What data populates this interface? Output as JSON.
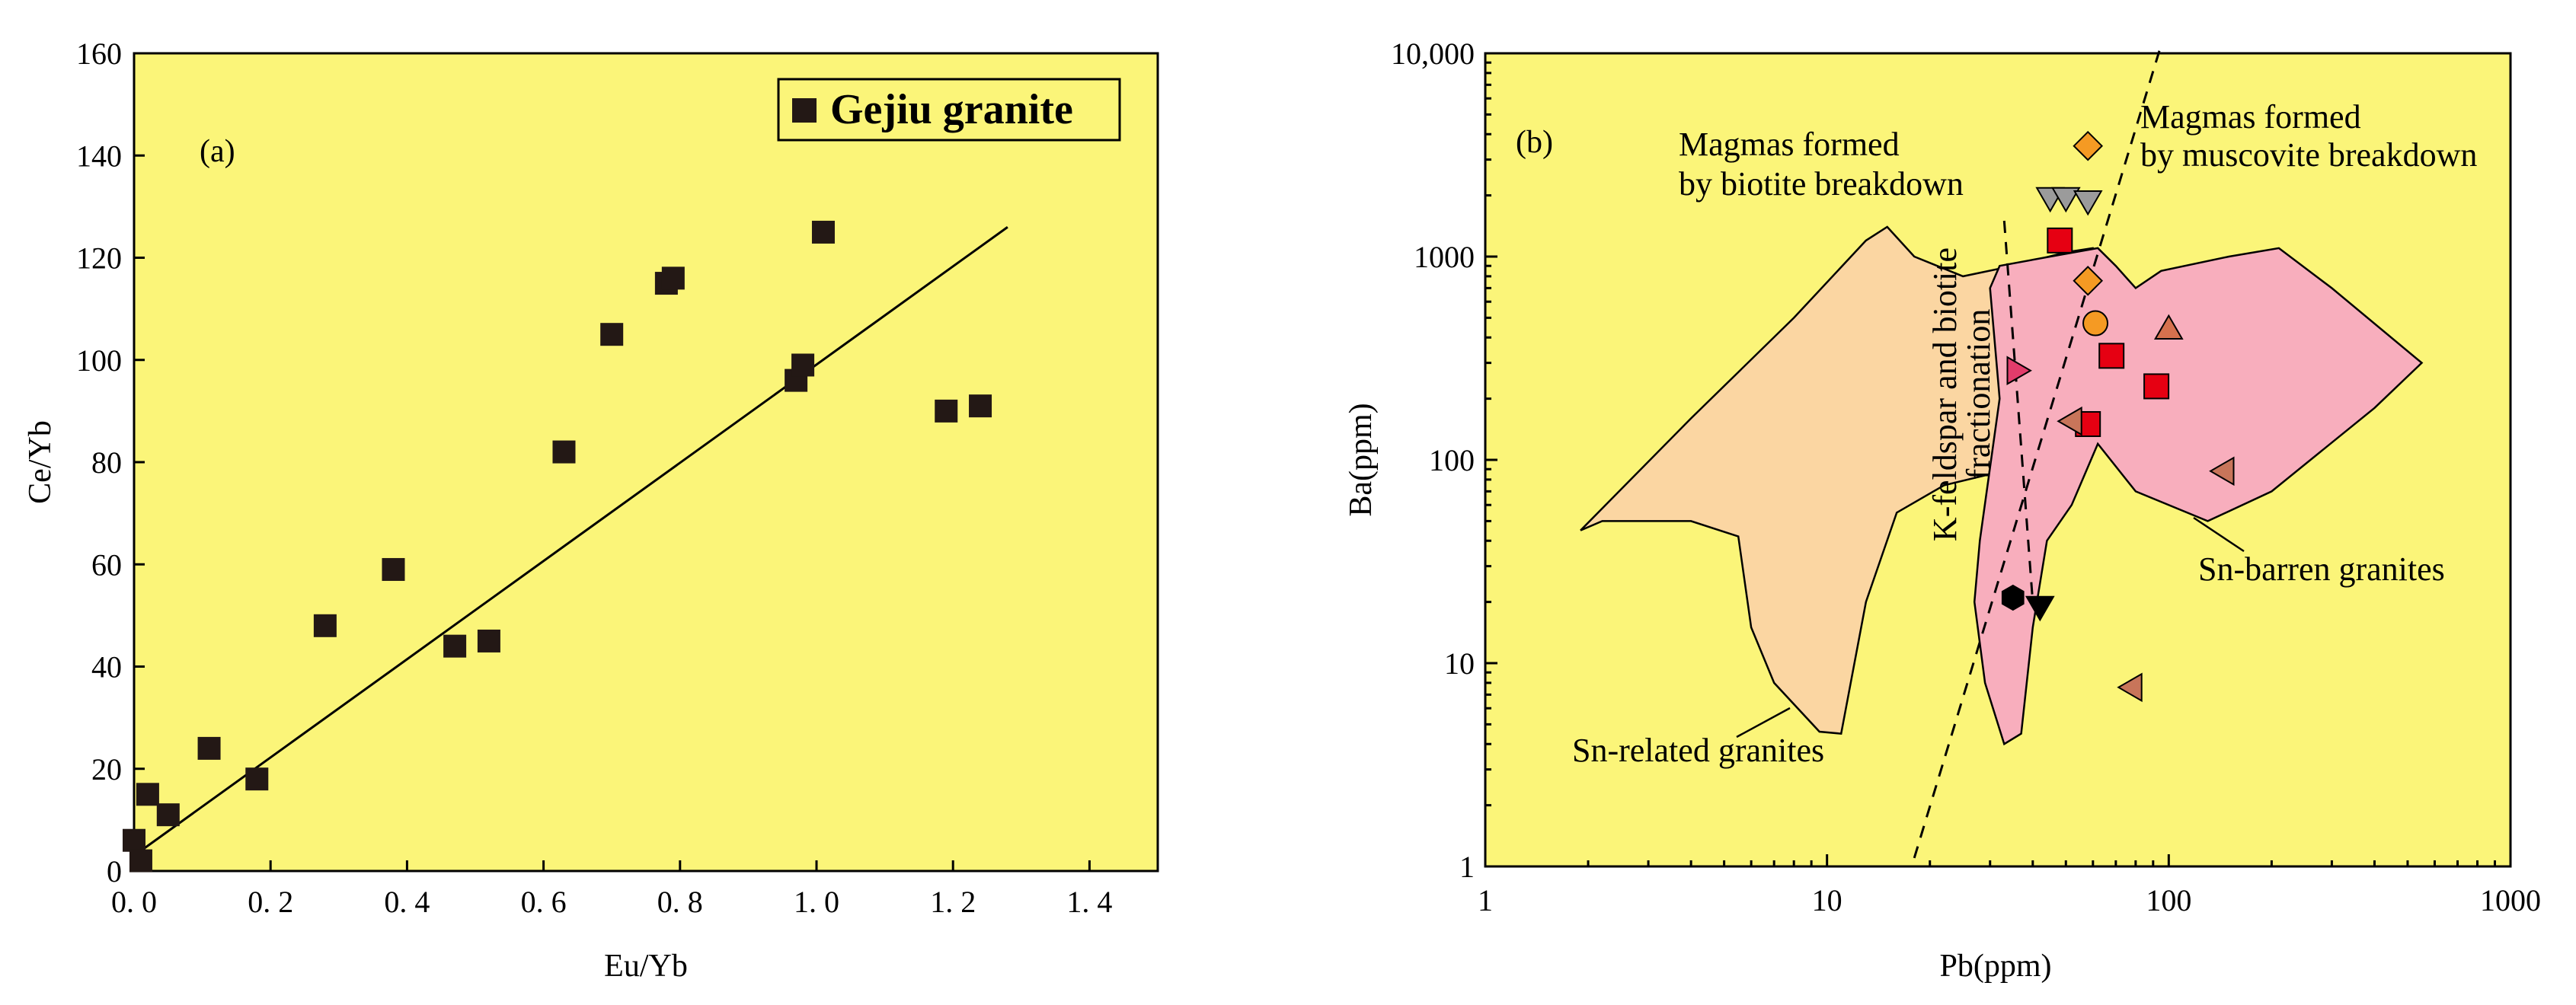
{
  "chart_data": [
    {
      "type": "scatter",
      "panel_label": "(a)",
      "xlabel": "Eu/Yb",
      "ylabel": "Ce/Yb",
      "xlim": [
        0.0,
        1.5
      ],
      "ylim": [
        0,
        160
      ],
      "x_ticks": [
        0.0,
        0.2,
        0.4,
        0.6,
        0.8,
        1.0,
        1.2,
        1.4
      ],
      "x_tick_labels": [
        "0. 0",
        "0. 2",
        "0. 4",
        "0. 6",
        "0. 8",
        "1. 0",
        "1. 2",
        "1. 4"
      ],
      "y_ticks": [
        0,
        20,
        40,
        60,
        80,
        100,
        120,
        140,
        160
      ],
      "y_tick_labels": [
        "0",
        "20",
        "40",
        "60",
        "80",
        "100",
        "120",
        "140",
        "160"
      ],
      "legend_position": "top-right",
      "series": [
        {
          "name": "Gejiu granite",
          "marker": "square",
          "color": "#231815",
          "points": [
            [
              0.0,
              6
            ],
            [
              0.01,
              2
            ],
            [
              0.02,
              15
            ],
            [
              0.05,
              11
            ],
            [
              0.11,
              24
            ],
            [
              0.18,
              18
            ],
            [
              0.28,
              48
            ],
            [
              0.38,
              59
            ],
            [
              0.47,
              44
            ],
            [
              0.52,
              45
            ],
            [
              0.63,
              82
            ],
            [
              0.7,
              105
            ],
            [
              0.78,
              115
            ],
            [
              0.79,
              116
            ],
            [
              0.97,
              96
            ],
            [
              0.98,
              99
            ],
            [
              1.01,
              125
            ],
            [
              1.19,
              90
            ],
            [
              1.24,
              91
            ]
          ]
        }
      ],
      "trend_line": {
        "from": [
          0.0,
          3
        ],
        "to": [
          1.28,
          126
        ]
      }
    },
    {
      "type": "scatter",
      "panel_label": "(b)",
      "xlabel": "Pb(ppm)",
      "ylabel": "Ba(ppm)",
      "x_scale": "log",
      "y_scale": "log",
      "xlim": [
        1,
        1000
      ],
      "ylim": [
        1,
        10000
      ],
      "x_tick_labels": [
        "1",
        "10",
        "100",
        "1000"
      ],
      "y_tick_labels": [
        "1",
        "10",
        "100",
        "1000",
        "10,000"
      ],
      "colors": {
        "sn_related_fill": "#fbd6a2",
        "sn_barren_fill": "#f8aebd",
        "background": "#fbf579"
      },
      "regions": [
        {
          "label": "Sn-related granites",
          "outline": [
            [
              1.9,
              45
            ],
            [
              4,
              160
            ],
            [
              8,
              500
            ],
            [
              13,
              1200
            ],
            [
              15,
              1400
            ],
            [
              18,
              1000
            ],
            [
              25,
              800
            ],
            [
              35,
              900
            ],
            [
              50,
              1050
            ],
            [
              60,
              1100
            ],
            [
              70,
              700
            ],
            [
              60,
              400
            ],
            [
              48,
              200
            ],
            [
              44,
              120
            ],
            [
              38,
              95
            ],
            [
              30,
              85
            ],
            [
              22,
              75
            ],
            [
              16,
              55
            ],
            [
              13,
              20
            ],
            [
              11,
              4.5
            ],
            [
              9.5,
              4.6
            ],
            [
              7,
              8
            ],
            [
              6,
              15
            ],
            [
              5.5,
              42
            ],
            [
              4,
              50
            ],
            [
              2.2,
              50
            ],
            [
              1.9,
              45
            ]
          ]
        },
        {
          "label": "Sn-barren granites",
          "outline": [
            [
              32,
              900
            ],
            [
              45,
              1000
            ],
            [
              62,
              1100
            ],
            [
              70,
              900
            ],
            [
              80,
              700
            ],
            [
              95,
              850
            ],
            [
              150,
              1000
            ],
            [
              210,
              1100
            ],
            [
              300,
              700
            ],
            [
              550,
              300
            ],
            [
              400,
              180
            ],
            [
              200,
              70
            ],
            [
              130,
              50
            ],
            [
              80,
              70
            ],
            [
              62,
              120
            ],
            [
              52,
              60
            ],
            [
              44,
              40
            ],
            [
              40,
              15
            ],
            [
              37,
              4.5
            ],
            [
              33,
              4.0
            ],
            [
              29,
              8
            ],
            [
              27,
              20
            ],
            [
              28,
              40
            ],
            [
              32,
              200
            ],
            [
              30,
              700
            ],
            [
              32,
              900
            ]
          ]
        }
      ],
      "dashed_lines": [
        {
          "label": "Magmas formed by muscovite breakdown",
          "from": [
            18,
            1.1
          ],
          "to": [
            95,
            11000
          ]
        },
        {
          "label": "Magmas formed by biotite breakdown",
          "from": [
            33,
            1500
          ],
          "to": [
            40,
            20
          ]
        }
      ],
      "annotations": {
        "biotite": [
          "Magmas formed",
          "by biotite breakdown"
        ],
        "muscovite": [
          "Magmas formed",
          "by muscovite breakdown"
        ],
        "fractionation": [
          "K-feldspar and biotite",
          "fractionation"
        ],
        "sn_barren": "Sn-barren granites",
        "sn_related": "Sn-related granites"
      },
      "markers": [
        {
          "shape": "diamond",
          "color": "#f59a23",
          "points": [
            [
              58,
              3500
            ],
            [
              58,
              760
            ]
          ]
        },
        {
          "shape": "triangle-down",
          "color": "#9b9b9b",
          "points": [
            [
              45,
              1950
            ],
            [
              50,
              1950
            ],
            [
              58,
              1880
            ]
          ]
        },
        {
          "shape": "square",
          "color": "#e60012",
          "points": [
            [
              48,
              1200
            ],
            [
              68,
              325
            ],
            [
              92,
              230
            ],
            [
              58,
              150
            ]
          ]
        },
        {
          "shape": "circle",
          "color": "#f59a23",
          "points": [
            [
              61,
              470
            ]
          ]
        },
        {
          "shape": "triangle-up",
          "color": "#d6714e",
          "points": [
            [
              100,
              440
            ]
          ]
        },
        {
          "shape": "triangle-right",
          "color": "#e23c6b",
          "points": [
            [
              36,
              275
            ]
          ]
        },
        {
          "shape": "triangle-left",
          "color": "#c8755a",
          "points": [
            [
              52,
              155
            ],
            [
              145,
              88
            ],
            [
              78,
              7.6
            ]
          ]
        },
        {
          "shape": "hexagon",
          "color": "#000000",
          "points": [
            [
              35,
              21
            ]
          ]
        },
        {
          "shape": "triangle-down",
          "color": "#000000",
          "points": [
            [
              42,
              19
            ]
          ]
        }
      ]
    }
  ]
}
